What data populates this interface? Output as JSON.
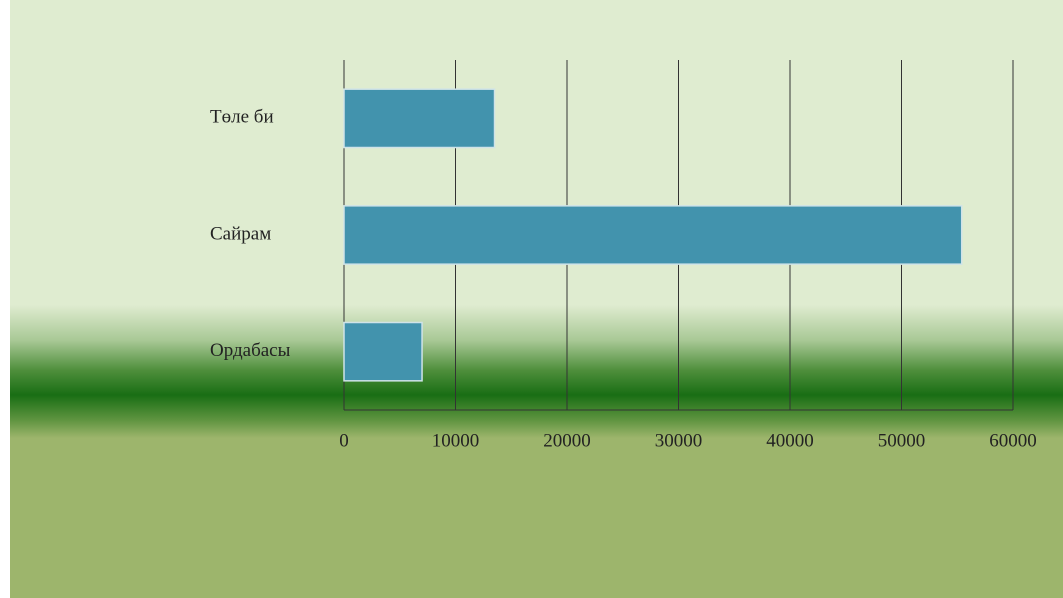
{
  "chart_data": {
    "type": "bar",
    "orientation": "horizontal",
    "categories": [
      "Төле би",
      "Сайрам",
      "Ордабасы"
    ],
    "values": [
      13500,
      55400,
      7000
    ],
    "color": "#4293ad",
    "xlim": [
      0,
      60000
    ],
    "xticks": [
      0,
      10000,
      20000,
      30000,
      40000,
      50000,
      60000
    ],
    "grid": true
  }
}
